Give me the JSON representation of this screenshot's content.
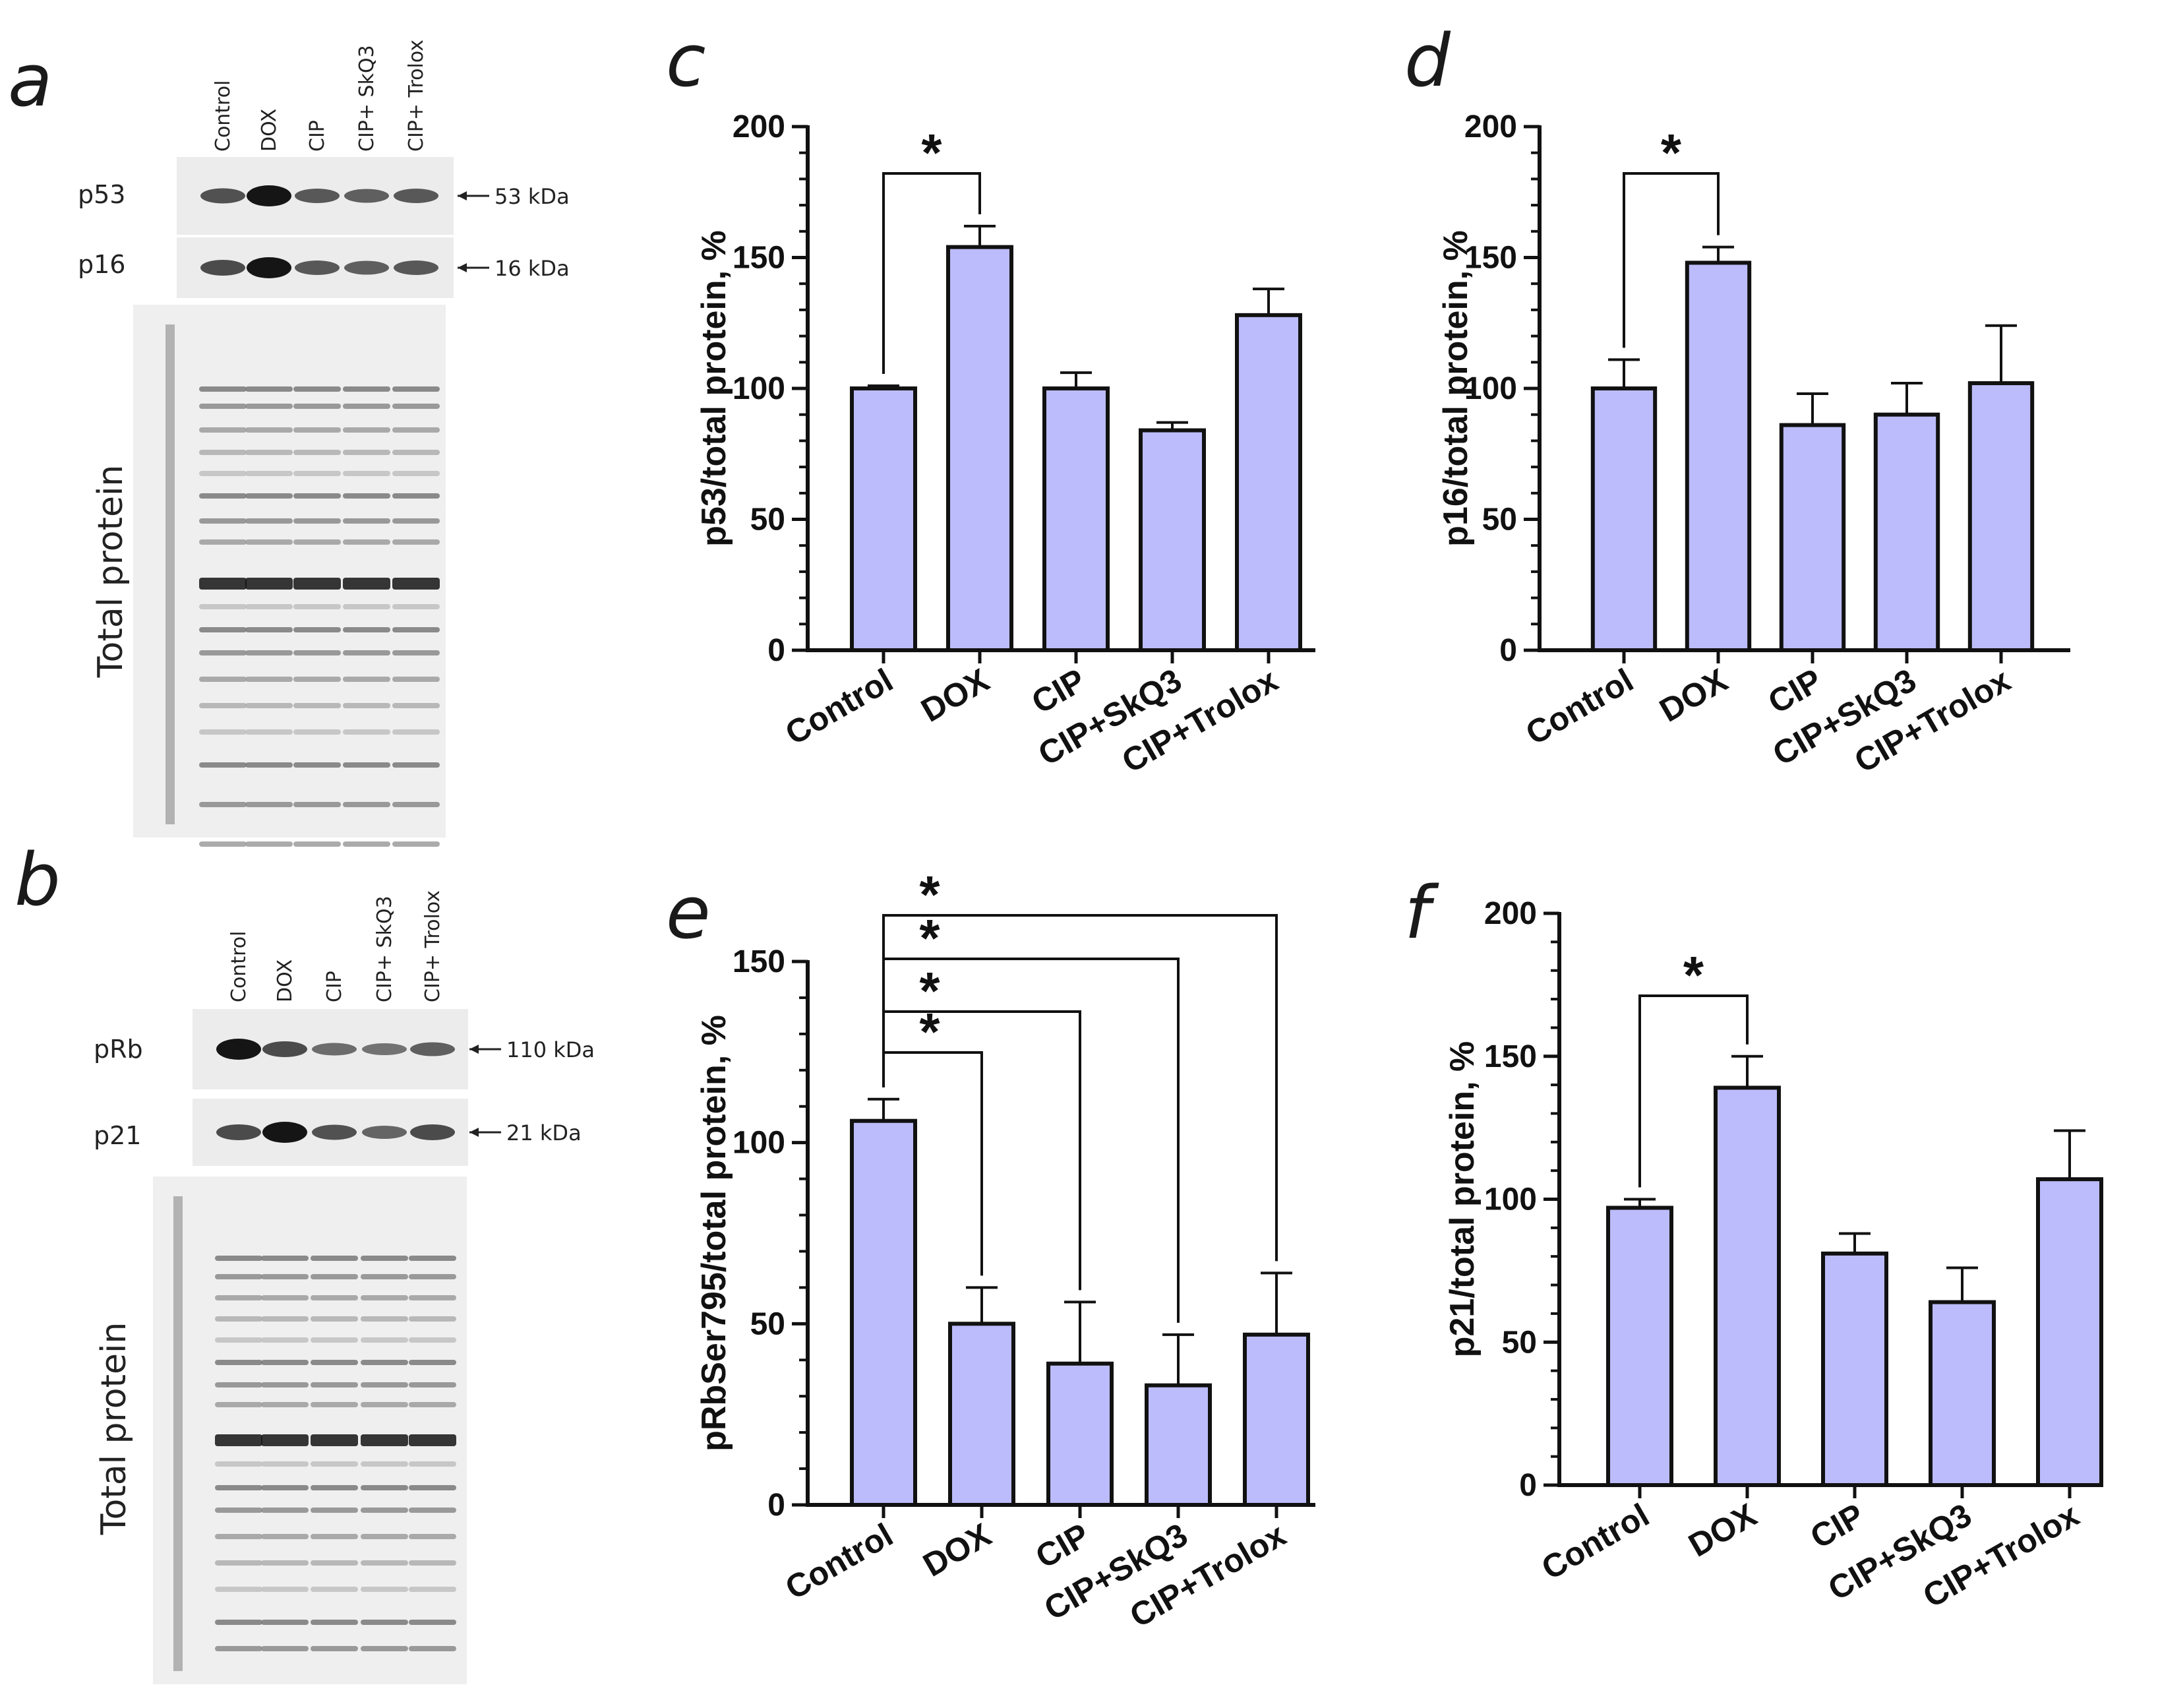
{
  "blots": [
    {
      "panel": "a",
      "lanes": [
        "Control",
        "DOX",
        "CIP",
        "CIP+ SkQ3",
        "CIP+ Trolox"
      ],
      "rows": [
        {
          "protein": "p53",
          "marker": "53 kDa",
          "intensity": [
            0.55,
            1.0,
            0.5,
            0.45,
            0.5
          ]
        },
        {
          "protein": "p16",
          "marker": "16 kDa",
          "intensity": [
            0.6,
            1.0,
            0.5,
            0.45,
            0.5
          ]
        }
      ],
      "total_label": "Total protein"
    },
    {
      "panel": "b",
      "lanes": [
        "Control",
        "DOX",
        "CIP",
        "CIP+ SkQ3",
        "CIP+ Trolox"
      ],
      "rows": [
        {
          "protein": "pRb",
          "marker": "110 kDa",
          "intensity": [
            1.0,
            0.6,
            0.35,
            0.3,
            0.45
          ]
        },
        {
          "protein": "p21",
          "marker": "21 kDa",
          "intensity": [
            0.6,
            1.0,
            0.55,
            0.4,
            0.6
          ]
        }
      ],
      "total_label": "Total protein"
    }
  ],
  "chart_data": [
    {
      "panel": "c",
      "type": "bar",
      "categories": [
        "Control",
        "DOX",
        "CIP",
        "CIP+SkQ3",
        "CIP+Trolox"
      ],
      "values": [
        100,
        154,
        100,
        84,
        128
      ],
      "errors": [
        1,
        8,
        6,
        3,
        10
      ],
      "ylabel": "p53/total protein, %",
      "ylim": [
        0,
        200
      ],
      "yticks": [
        0,
        50,
        100,
        150,
        200
      ],
      "significance": [
        {
          "from": "Control",
          "to": "DOX",
          "label": "*"
        }
      ]
    },
    {
      "panel": "d",
      "type": "bar",
      "categories": [
        "Control",
        "DOX",
        "CIP",
        "CIP+SkQ3",
        "CIP+Trolox"
      ],
      "values": [
        100,
        148,
        86,
        90,
        102
      ],
      "errors": [
        11,
        6,
        12,
        12,
        22
      ],
      "ylabel": "p16/total protein, %",
      "ylim": [
        0,
        200
      ],
      "yticks": [
        0,
        50,
        100,
        150,
        200
      ],
      "significance": [
        {
          "from": "Control",
          "to": "DOX",
          "label": "*"
        }
      ]
    },
    {
      "panel": "e",
      "type": "bar",
      "categories": [
        "Control",
        "DOX",
        "CIP",
        "CIP+SkQ3",
        "CIP+Trolox"
      ],
      "values": [
        106,
        50,
        39,
        33,
        47
      ],
      "errors": [
        6,
        10,
        17,
        14,
        17
      ],
      "ylabel": "pRbSer795/total protein, %",
      "ylim": [
        0,
        150
      ],
      "yticks": [
        0,
        50,
        100,
        150
      ],
      "significance": [
        {
          "from": "Control",
          "to": "DOX",
          "label": "*"
        },
        {
          "from": "Control",
          "to": "CIP",
          "label": "*"
        },
        {
          "from": "Control",
          "to": "CIP+SkQ3",
          "label": "*"
        },
        {
          "from": "Control",
          "to": "CIP+Trolox",
          "label": "*"
        }
      ]
    },
    {
      "panel": "f",
      "type": "bar",
      "categories": [
        "Control",
        "DOX",
        "CIP",
        "CIP+SkQ3",
        "CIP+Trolox"
      ],
      "values": [
        97,
        139,
        81,
        64,
        107
      ],
      "errors": [
        3,
        11,
        7,
        12,
        17
      ],
      "ylabel": "p21/total protein, %",
      "ylim": [
        0,
        200
      ],
      "yticks": [
        0,
        50,
        100,
        150,
        200
      ],
      "significance": [
        {
          "from": "Control",
          "to": "DOX",
          "label": "*"
        }
      ]
    }
  ],
  "colors": {
    "bar_fill": "#bcbcfc",
    "bar_stroke": "#111111",
    "text": "#111111"
  }
}
